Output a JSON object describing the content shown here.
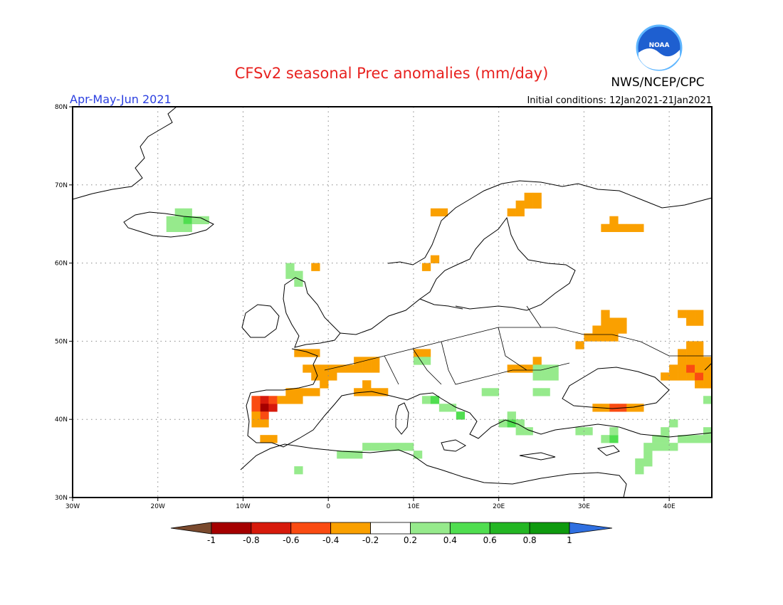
{
  "header": {
    "title": "CFSv2 seasonal Prec anomalies (mm/day)",
    "agency": "NWS/NCEP/CPC",
    "period": "Apr-May-Jun 2021",
    "initial_conditions": "Initial conditions: 12Jan2021-21Jan2021",
    "logo_text": "NOAA"
  },
  "colors": {
    "title": "#e8211f",
    "period": "#2b3fe0",
    "frame": "#000000",
    "grid": "#888888",
    "coast": "#000000"
  },
  "map": {
    "lon_range": [
      -30,
      45
    ],
    "lat_range": [
      30,
      80
    ],
    "lat_ticks": [
      {
        "value": 80,
        "label": "80N"
      },
      {
        "value": 70,
        "label": "70N"
      },
      {
        "value": 60,
        "label": "60N"
      },
      {
        "value": 50,
        "label": "50N"
      },
      {
        "value": 40,
        "label": "40N"
      },
      {
        "value": 30,
        "label": "30N"
      }
    ],
    "lon_ticks": [
      {
        "value": -30,
        "label": "30W"
      },
      {
        "value": -20,
        "label": "20W"
      },
      {
        "value": -10,
        "label": "10W"
      },
      {
        "value": 0,
        "label": "0"
      },
      {
        "value": 10,
        "label": "10E"
      },
      {
        "value": 20,
        "label": "20E"
      },
      {
        "value": 30,
        "label": "30E"
      },
      {
        "value": 40,
        "label": "40E"
      }
    ],
    "cell_deg": 1,
    "anomaly_cells": [
      {
        "lon": -8,
        "lat": 42,
        "v": -0.7
      },
      {
        "lon": -8,
        "lat": 41,
        "v": -0.9
      },
      {
        "lon": -7,
        "lat": 41,
        "v": -0.7
      },
      {
        "lon": -7,
        "lat": 42,
        "v": -0.5
      },
      {
        "lon": -9,
        "lat": 42,
        "v": -0.5
      },
      {
        "lon": -9,
        "lat": 41,
        "v": -0.5
      },
      {
        "lon": -8,
        "lat": 40,
        "v": -0.5
      },
      {
        "lon": -9,
        "lat": 40,
        "v": -0.3
      },
      {
        "lon": -8,
        "lat": 39,
        "v": -0.3
      },
      {
        "lon": -9,
        "lat": 39,
        "v": -0.3
      },
      {
        "lon": -8,
        "lat": 37,
        "v": -0.3
      },
      {
        "lon": -7,
        "lat": 37,
        "v": -0.3
      },
      {
        "lon": -6,
        "lat": 42,
        "v": -0.3
      },
      {
        "lon": -5,
        "lat": 43,
        "v": -0.3
      },
      {
        "lon": -4,
        "lat": 43,
        "v": -0.3
      },
      {
        "lon": -3,
        "lat": 43,
        "v": -0.3
      },
      {
        "lon": -2,
        "lat": 43,
        "v": -0.3
      },
      {
        "lon": -4,
        "lat": 42,
        "v": -0.3
      },
      {
        "lon": -5,
        "lat": 42,
        "v": -0.3
      },
      {
        "lon": -1,
        "lat": 44,
        "v": -0.3
      },
      {
        "lon": -3,
        "lat": 46,
        "v": -0.3
      },
      {
        "lon": -2,
        "lat": 46,
        "v": -0.3
      },
      {
        "lon": -1,
        "lat": 46,
        "v": -0.3
      },
      {
        "lon": 0,
        "lat": 46,
        "v": -0.3
      },
      {
        "lon": 1,
        "lat": 46,
        "v": -0.3
      },
      {
        "lon": 2,
        "lat": 46,
        "v": -0.3
      },
      {
        "lon": 3,
        "lat": 46,
        "v": -0.3
      },
      {
        "lon": 4,
        "lat": 46,
        "v": -0.3
      },
      {
        "lon": 5,
        "lat": 46,
        "v": -0.3
      },
      {
        "lon": -2,
        "lat": 45,
        "v": -0.3
      },
      {
        "lon": -1,
        "lat": 45,
        "v": -0.3
      },
      {
        "lon": 0,
        "lat": 45,
        "v": -0.3
      },
      {
        "lon": 3,
        "lat": 47,
        "v": -0.3
      },
      {
        "lon": 4,
        "lat": 47,
        "v": -0.3
      },
      {
        "lon": 5,
        "lat": 47,
        "v": -0.3
      },
      {
        "lon": -4,
        "lat": 48,
        "v": -0.3
      },
      {
        "lon": -3,
        "lat": 48,
        "v": -0.3
      },
      {
        "lon": -2,
        "lat": 48,
        "v": -0.3
      },
      {
        "lon": 3,
        "lat": 43,
        "v": -0.3
      },
      {
        "lon": 4,
        "lat": 43,
        "v": -0.3
      },
      {
        "lon": 5,
        "lat": 43,
        "v": -0.3
      },
      {
        "lon": 6,
        "lat": 43,
        "v": -0.3
      },
      {
        "lon": 4,
        "lat": 44,
        "v": -0.3
      },
      {
        "lon": 10,
        "lat": 48,
        "v": -0.3
      },
      {
        "lon": 11,
        "lat": 48,
        "v": -0.3
      },
      {
        "lon": 21,
        "lat": 46,
        "v": -0.3
      },
      {
        "lon": 22,
        "lat": 46,
        "v": -0.3
      },
      {
        "lon": 23,
        "lat": 46,
        "v": -0.3
      },
      {
        "lon": 24,
        "lat": 47,
        "v": -0.3
      },
      {
        "lon": 29,
        "lat": 49,
        "v": -0.3
      },
      {
        "lon": 30,
        "lat": 50,
        "v": -0.3
      },
      {
        "lon": 31,
        "lat": 50,
        "v": -0.3
      },
      {
        "lon": 32,
        "lat": 50,
        "v": -0.3
      },
      {
        "lon": 33,
        "lat": 50,
        "v": -0.3
      },
      {
        "lon": 31,
        "lat": 51,
        "v": -0.3
      },
      {
        "lon": 32,
        "lat": 51,
        "v": -0.3
      },
      {
        "lon": 33,
        "lat": 51,
        "v": -0.3
      },
      {
        "lon": 34,
        "lat": 51,
        "v": -0.3
      },
      {
        "lon": 32,
        "lat": 52,
        "v": -0.3
      },
      {
        "lon": 33,
        "lat": 52,
        "v": -0.3
      },
      {
        "lon": 34,
        "lat": 52,
        "v": -0.3
      },
      {
        "lon": 32,
        "lat": 53,
        "v": -0.3
      },
      {
        "lon": 31,
        "lat": 41,
        "v": -0.3
      },
      {
        "lon": 32,
        "lat": 41,
        "v": -0.3
      },
      {
        "lon": 33,
        "lat": 41,
        "v": -0.5
      },
      {
        "lon": 34,
        "lat": 41,
        "v": -0.5
      },
      {
        "lon": 35,
        "lat": 41,
        "v": -0.3
      },
      {
        "lon": 36,
        "lat": 41,
        "v": -0.3
      },
      {
        "lon": 39,
        "lat": 45,
        "v": -0.3
      },
      {
        "lon": 40,
        "lat": 45,
        "v": -0.3
      },
      {
        "lon": 41,
        "lat": 45,
        "v": -0.3
      },
      {
        "lon": 42,
        "lat": 45,
        "v": -0.3
      },
      {
        "lon": 43,
        "lat": 45,
        "v": -0.5
      },
      {
        "lon": 44,
        "lat": 45,
        "v": -0.3
      },
      {
        "lon": 40,
        "lat": 46,
        "v": -0.3
      },
      {
        "lon": 41,
        "lat": 46,
        "v": -0.3
      },
      {
        "lon": 42,
        "lat": 46,
        "v": -0.5
      },
      {
        "lon": 43,
        "lat": 46,
        "v": -0.3
      },
      {
        "lon": 44,
        "lat": 46,
        "v": -0.3
      },
      {
        "lon": 41,
        "lat": 47,
        "v": -0.3
      },
      {
        "lon": 42,
        "lat": 47,
        "v": -0.3
      },
      {
        "lon": 43,
        "lat": 47,
        "v": -0.3
      },
      {
        "lon": 44,
        "lat": 47,
        "v": -0.3
      },
      {
        "lon": 41,
        "lat": 48,
        "v": -0.3
      },
      {
        "lon": 42,
        "lat": 48,
        "v": -0.3
      },
      {
        "lon": 43,
        "lat": 48,
        "v": -0.3
      },
      {
        "lon": 42,
        "lat": 49,
        "v": -0.3
      },
      {
        "lon": 43,
        "lat": 49,
        "v": -0.3
      },
      {
        "lon": 44,
        "lat": 44,
        "v": -0.3
      },
      {
        "lon": 43,
        "lat": 44,
        "v": -0.3
      },
      {
        "lon": 42,
        "lat": 52,
        "v": -0.3
      },
      {
        "lon": 43,
        "lat": 52,
        "v": -0.3
      },
      {
        "lon": 42,
        "lat": 53,
        "v": -0.3
      },
      {
        "lon": 43,
        "lat": 53,
        "v": -0.3
      },
      {
        "lon": 41,
        "lat": 53,
        "v": -0.3
      },
      {
        "lon": 22,
        "lat": 67,
        "v": -0.3
      },
      {
        "lon": 23,
        "lat": 67,
        "v": -0.3
      },
      {
        "lon": 24,
        "lat": 67,
        "v": -0.3
      },
      {
        "lon": 21,
        "lat": 66,
        "v": -0.3
      },
      {
        "lon": 22,
        "lat": 66,
        "v": -0.3
      },
      {
        "lon": 23,
        "lat": 68,
        "v": -0.3
      },
      {
        "lon": 24,
        "lat": 68,
        "v": -0.3
      },
      {
        "lon": 32,
        "lat": 64,
        "v": -0.3
      },
      {
        "lon": 33,
        "lat": 64,
        "v": -0.3
      },
      {
        "lon": 34,
        "lat": 64,
        "v": -0.3
      },
      {
        "lon": 35,
        "lat": 64,
        "v": -0.3
      },
      {
        "lon": 36,
        "lat": 64,
        "v": -0.3
      },
      {
        "lon": 33,
        "lat": 65,
        "v": -0.3
      },
      {
        "lon": 12,
        "lat": 66,
        "v": -0.3
      },
      {
        "lon": 13,
        "lat": 66,
        "v": -0.3
      },
      {
        "lon": -2,
        "lat": 59,
        "v": -0.3
      },
      {
        "lon": 11,
        "lat": 59,
        "v": -0.3
      },
      {
        "lon": 12,
        "lat": 60,
        "v": -0.3
      },
      {
        "lon": -19,
        "lat": 65,
        "v": 0.3
      },
      {
        "lon": -18,
        "lat": 65,
        "v": 0.3
      },
      {
        "lon": -17,
        "lat": 65,
        "v": 0.5
      },
      {
        "lon": -16,
        "lat": 65,
        "v": 0.3
      },
      {
        "lon": -15,
        "lat": 65,
        "v": 0.3
      },
      {
        "lon": -19,
        "lat": 64,
        "v": 0.3
      },
      {
        "lon": -18,
        "lat": 64,
        "v": 0.3
      },
      {
        "lon": -17,
        "lat": 64,
        "v": 0.3
      },
      {
        "lon": -18,
        "lat": 66,
        "v": 0.3
      },
      {
        "lon": -17,
        "lat": 66,
        "v": 0.3
      },
      {
        "lon": -5,
        "lat": 58,
        "v": 0.3
      },
      {
        "lon": -4,
        "lat": 58,
        "v": 0.3
      },
      {
        "lon": -4,
        "lat": 57,
        "v": 0.3
      },
      {
        "lon": -5,
        "lat": 59,
        "v": 0.3
      },
      {
        "lon": 11,
        "lat": 42,
        "v": 0.3
      },
      {
        "lon": 12,
        "lat": 42,
        "v": 0.5
      },
      {
        "lon": 13,
        "lat": 41,
        "v": 0.3
      },
      {
        "lon": 14,
        "lat": 41,
        "v": 0.3
      },
      {
        "lon": 15,
        "lat": 40,
        "v": 0.5
      },
      {
        "lon": 10,
        "lat": 47,
        "v": 0.3
      },
      {
        "lon": 11,
        "lat": 47,
        "v": 0.3
      },
      {
        "lon": 18,
        "lat": 43,
        "v": 0.3
      },
      {
        "lon": 19,
        "lat": 43,
        "v": 0.3
      },
      {
        "lon": 20,
        "lat": 39,
        "v": 0.3
      },
      {
        "lon": 21,
        "lat": 39,
        "v": 0.5
      },
      {
        "lon": 22,
        "lat": 39,
        "v": 0.3
      },
      {
        "lon": 22,
        "lat": 38,
        "v": 0.3
      },
      {
        "lon": 23,
        "lat": 38,
        "v": 0.3
      },
      {
        "lon": 21,
        "lat": 40,
        "v": 0.3
      },
      {
        "lon": 24,
        "lat": 45,
        "v": 0.3
      },
      {
        "lon": 25,
        "lat": 45,
        "v": 0.3
      },
      {
        "lon": 26,
        "lat": 45,
        "v": 0.3
      },
      {
        "lon": 24,
        "lat": 46,
        "v": 0.3
      },
      {
        "lon": 25,
        "lat": 46,
        "v": 0.3
      },
      {
        "lon": 26,
        "lat": 46,
        "v": 0.3
      },
      {
        "lon": 24,
        "lat": 43,
        "v": 0.3
      },
      {
        "lon": 25,
        "lat": 43,
        "v": 0.3
      },
      {
        "lon": 1,
        "lat": 35,
        "v": 0.3
      },
      {
        "lon": 2,
        "lat": 35,
        "v": 0.3
      },
      {
        "lon": 3,
        "lat": 35,
        "v": 0.3
      },
      {
        "lon": 4,
        "lat": 36,
        "v": 0.3
      },
      {
        "lon": 5,
        "lat": 36,
        "v": 0.3
      },
      {
        "lon": 6,
        "lat": 36,
        "v": 0.3
      },
      {
        "lon": 7,
        "lat": 36,
        "v": 0.3
      },
      {
        "lon": 8,
        "lat": 36,
        "v": 0.3
      },
      {
        "lon": 9,
        "lat": 36,
        "v": 0.3
      },
      {
        "lon": 10,
        "lat": 35,
        "v": 0.3
      },
      {
        "lon": -4,
        "lat": 33,
        "v": 0.3
      },
      {
        "lon": 29,
        "lat": 38,
        "v": 0.3
      },
      {
        "lon": 30,
        "lat": 38,
        "v": 0.3
      },
      {
        "lon": 32,
        "lat": 37,
        "v": 0.3
      },
      {
        "lon": 33,
        "lat": 37,
        "v": 0.5
      },
      {
        "lon": 33,
        "lat": 38,
        "v": 0.3
      },
      {
        "lon": 37,
        "lat": 36,
        "v": 0.3
      },
      {
        "lon": 37,
        "lat": 35,
        "v": 0.3
      },
      {
        "lon": 36,
        "lat": 34,
        "v": 0.3
      },
      {
        "lon": 36,
        "lat": 33,
        "v": 0.3
      },
      {
        "lon": 38,
        "lat": 36,
        "v": 0.3
      },
      {
        "lon": 39,
        "lat": 37,
        "v": 0.3
      },
      {
        "lon": 39,
        "lat": 38,
        "v": 0.3
      },
      {
        "lon": 40,
        "lat": 39,
        "v": 0.3
      },
      {
        "lon": 38,
        "lat": 37,
        "v": 0.3
      },
      {
        "lon": 41,
        "lat": 37,
        "v": 0.3
      },
      {
        "lon": 42,
        "lat": 37,
        "v": 0.3
      },
      {
        "lon": 43,
        "lat": 37,
        "v": 0.3
      },
      {
        "lon": 44,
        "lat": 37,
        "v": 0.3
      },
      {
        "lon": 44,
        "lat": 38,
        "v": 0.3
      },
      {
        "lon": 44,
        "lat": 42,
        "v": 0.3
      },
      {
        "lon": 40,
        "lat": 36,
        "v": 0.3
      },
      {
        "lon": 39,
        "lat": 36,
        "v": 0.3
      },
      {
        "lon": 37,
        "lat": 34,
        "v": 0.3
      }
    ]
  },
  "colorbar": {
    "labels": [
      "-1",
      "-0.8",
      "-0.6",
      "-0.4",
      "-0.2",
      "0.2",
      "0.4",
      "0.6",
      "0.8",
      "1"
    ],
    "low_color": "#7a4a2e",
    "high_color": "#2f6fe0",
    "bins": [
      {
        "from": -1.0,
        "to": -0.8,
        "color": "#a50000"
      },
      {
        "from": -0.8,
        "to": -0.6,
        "color": "#d71a0c"
      },
      {
        "from": -0.6,
        "to": -0.4,
        "color": "#fa4b12"
      },
      {
        "from": -0.4,
        "to": -0.2,
        "color": "#faa000"
      },
      {
        "from": -0.2,
        "to": 0.2,
        "color": "#ffffff"
      },
      {
        "from": 0.2,
        "to": 0.4,
        "color": "#96ea8c"
      },
      {
        "from": 0.4,
        "to": 0.6,
        "color": "#50de50"
      },
      {
        "from": 0.6,
        "to": 0.8,
        "color": "#23b623"
      },
      {
        "from": 0.8,
        "to": 1.0,
        "color": "#0e9a0e"
      }
    ]
  }
}
